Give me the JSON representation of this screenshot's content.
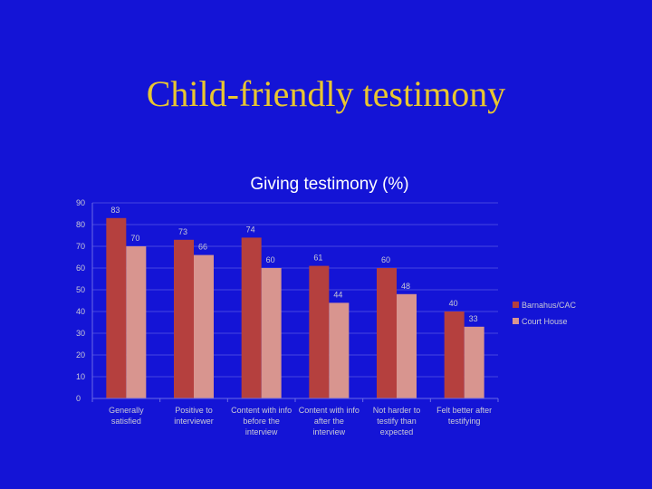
{
  "slide": {
    "title": "Child-friendly testimony"
  },
  "colors": {
    "background": "#1414d6",
    "title": "#e8c630",
    "text": "#c9c9d6",
    "grid": "#4646e0"
  },
  "chart_data": {
    "type": "bar",
    "title": "Giving testimony (%)",
    "categories": [
      [
        "Generally",
        "satisfied"
      ],
      [
        "Positive to",
        "interviewer"
      ],
      [
        "Content with info",
        "before the",
        "interview"
      ],
      [
        "Content with info",
        "after the",
        "interview"
      ],
      [
        "Not harder to",
        "testify than",
        "expected"
      ],
      [
        "Felt better after",
        "testifying"
      ]
    ],
    "series": [
      {
        "name": "Barnahus/CAC",
        "color": "#b5403e",
        "values": [
          83,
          73,
          74,
          61,
          60,
          40
        ]
      },
      {
        "name": "Court House",
        "color": "#d8958f",
        "values": [
          70,
          66,
          60,
          44,
          48,
          33
        ]
      }
    ],
    "ylim": [
      0,
      90
    ],
    "yticks": [
      0,
      10,
      20,
      30,
      40,
      50,
      60,
      70,
      80,
      90
    ],
    "grid": true,
    "legend": "right",
    "xlabel": "",
    "ylabel": ""
  }
}
